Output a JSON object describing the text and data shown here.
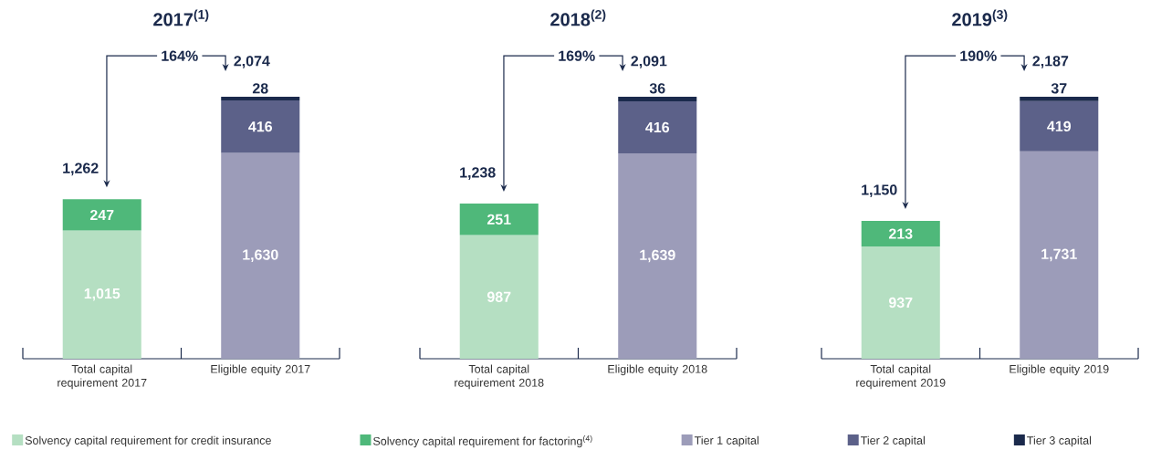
{
  "chart_data": [
    {
      "type": "bar",
      "title": "2017$^{(1)}$",
      "stacked": true,
      "legend": "bottom",
      "categories": [
        "Total capital requirement 2017",
        "Eligible equity 2017"
      ],
      "series": [
        {
          "name": "Solvency capital requirement for credit insurance",
          "color": "#b5dfc2",
          "values": [
            1015,
            null
          ],
          "value_labels": [
            "1,015",
            null
          ]
        },
        {
          "name": "Solvency capital requirement for factoring$^{(4)}$",
          "color": "#4fb87a",
          "values": [
            247,
            null
          ],
          "value_labels": [
            "247",
            null
          ]
        },
        {
          "name": "Tier 1 capital",
          "color": "#9c9cb9",
          "values": [
            null,
            1630
          ],
          "value_labels": [
            null,
            "1,630"
          ]
        },
        {
          "name": "Tier 2 capital",
          "color": "#5c6189",
          "values": [
            null,
            416
          ],
          "value_labels": [
            null,
            "416"
          ]
        },
        {
          "name": "Tier 3 capital",
          "color": "#1b2a4c",
          "values": [
            null,
            28
          ],
          "value_labels": [
            null,
            "28"
          ]
        }
      ],
      "totals": [
        "1,262",
        "2,074"
      ],
      "annotations": [
        "164%"
      ]
    },
    {
      "type": "bar",
      "title": "2018$^{(2)}$",
      "stacked": true,
      "categories": [
        "Total capital requirement 2018",
        "Eligible equity 2018"
      ],
      "series": [
        {
          "color": "#b5dfc2",
          "values": [
            987,
            null
          ],
          "value_labels": [
            "987",
            null
          ]
        },
        {
          "color": "#4fb87a",
          "values": [
            251,
            null
          ],
          "value_labels": [
            "251",
            null
          ]
        },
        {
          "color": "#9c9cb9",
          "values": [
            null,
            1639
          ],
          "value_labels": [
            null,
            "1,639"
          ]
        },
        {
          "color": "#5c6189",
          "values": [
            null,
            416
          ],
          "value_labels": [
            null,
            "416"
          ]
        },
        {
          "color": "#1b2a4c",
          "values": [
            null,
            36
          ],
          "value_labels": [
            null,
            "36"
          ]
        }
      ],
      "totals": [
        "1,238",
        "2,091"
      ],
      "annotations": [
        "169%"
      ]
    },
    {
      "type": "bar",
      "title": "2019$^{(3)}$",
      "stacked": true,
      "categories": [
        "Total capital requirement 2019",
        "Eligible equity 2019"
      ],
      "series": [
        {
          "color": "#b5dfc2",
          "values": [
            937,
            null
          ],
          "value_labels": [
            "937",
            null
          ]
        },
        {
          "color": "#4fb87a",
          "values": [
            213,
            null
          ],
          "value_labels": [
            "213",
            null
          ]
        },
        {
          "color": "#9c9cb9",
          "values": [
            null,
            1731
          ],
          "value_labels": [
            null,
            "1,731"
          ]
        },
        {
          "color": "#5c6189",
          "values": [
            null,
            419
          ],
          "value_labels": [
            null,
            "419"
          ]
        },
        {
          "color": "#1b2a4c",
          "values": [
            null,
            37
          ],
          "value_labels": [
            null,
            "37"
          ]
        }
      ],
      "totals": [
        "1,150",
        "2,187"
      ],
      "annotations": [
        "190%"
      ]
    }
  ]
}
